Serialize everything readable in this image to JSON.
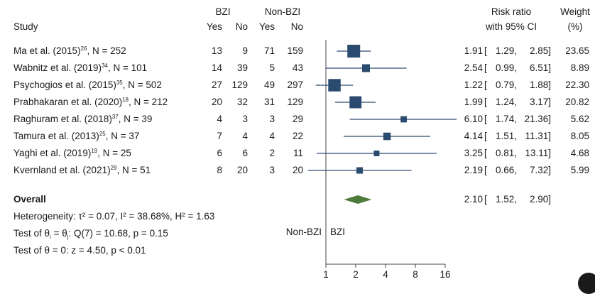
{
  "header": {
    "study": "Study",
    "group1": "BZI",
    "group2": "Non-BZI",
    "yes": "Yes",
    "no": "No",
    "rr_line1": "Risk ratio",
    "rr_line2": "with 95% CI",
    "weight_line1": "Weight",
    "weight_line2": "(%)"
  },
  "studies": [
    {
      "name": "Ma et al. (2015)",
      "ref": "26",
      "n": ", N = 252",
      "bzi_yes": "13",
      "bzi_no": "9",
      "non_yes": "71",
      "non_no": "159",
      "rr": "1.91",
      "lo": "1.29,",
      "hi": "2.85]",
      "weight": "23.65"
    },
    {
      "name": "Wabnitz et al. (2019)",
      "ref": "34",
      "n": ", N = 101",
      "bzi_yes": "14",
      "bzi_no": "39",
      "non_yes": "5",
      "non_no": "43",
      "rr": "2.54",
      "lo": "0.99,",
      "hi": "6.51]",
      "weight": "8.89"
    },
    {
      "name": "Psychogios et al. (2015)",
      "ref": "35",
      "n": ", N = 502",
      "bzi_yes": "27",
      "bzi_no": "129",
      "non_yes": "49",
      "non_no": "297",
      "rr": "1.22",
      "lo": "0.79,",
      "hi": "1.88]",
      "weight": "22.30"
    },
    {
      "name": "Prabhakaran et al. (2020)",
      "ref": "18",
      "n": ", N = 212",
      "bzi_yes": "20",
      "bzi_no": "32",
      "non_yes": "31",
      "non_no": "129",
      "rr": "1.99",
      "lo": "1.24,",
      "hi": "3.17]",
      "weight": "20.82"
    },
    {
      "name": "Raghuram et al. (2018)",
      "ref": "37",
      "n": ", N = 39",
      "bzi_yes": "4",
      "bzi_no": "3",
      "non_yes": "3",
      "non_no": "29",
      "rr": "6.10",
      "lo": "1.74,",
      "hi": "21.36]",
      "weight": "5.62"
    },
    {
      "name": "Tamura et al. (2013)",
      "ref": "25",
      "n": ", N = 37",
      "bzi_yes": "7",
      "bzi_no": "4",
      "non_yes": "4",
      "non_no": "22",
      "rr": "4.14",
      "lo": "1.51,",
      "hi": "11.31]",
      "weight": "8.05"
    },
    {
      "name": "Yaghi et al. (2019)",
      "ref": "19",
      "n": ", N = 25",
      "bzi_yes": "6",
      "bzi_no": "6",
      "non_yes": "2",
      "non_no": "11",
      "rr": "3.25",
      "lo": "0.81,",
      "hi": "13.11]",
      "weight": "4.68"
    },
    {
      "name": "Kvernland et al. (2021)",
      "ref": "29",
      "n": ", N = 51",
      "bzi_yes": "8",
      "bzi_no": "20",
      "non_yes": "3",
      "non_no": "20",
      "rr": "2.19",
      "lo": "0.66,",
      "hi": "7.32]",
      "weight": "5.99"
    }
  ],
  "overall": {
    "label": "Overall",
    "rr": "2.10",
    "lo": "1.52,",
    "hi": "2.90]"
  },
  "stats": {
    "heterogeneity": "Heterogeneity: τ² = 0.07, I² = 38.68%, H² = 1.63",
    "test_theta_i_prefix": "Test of θ",
    "test_theta_i_mid": " = θ",
    "test_theta_i_suffix": ": Q(7) = 10.68, p = 0.15",
    "test_theta_i_sub1": "i",
    "test_theta_i_sub2": "j",
    "test_theta0": "Test of θ = 0: z = 4.50, p < 0.01"
  },
  "favor": {
    "left": "Non-BZI",
    "right": "BZI"
  },
  "chart_data": {
    "type": "forest",
    "xscale": "log2",
    "xlim": [
      1,
      16
    ],
    "xticks": [
      1,
      2,
      4,
      8,
      16
    ],
    "xtick_labels": [
      "1",
      "2",
      "4",
      "8",
      "16"
    ],
    "reference_line": 1,
    "colors": {
      "study_marker": "#2b4a6f",
      "overall_diamond": "#4e7a3a"
    },
    "studies": [
      {
        "label": "Ma et al. (2015)",
        "rr": 1.91,
        "ci": [
          1.29,
          2.85
        ],
        "weight": 23.65
      },
      {
        "label": "Wabnitz et al. (2019)",
        "rr": 2.54,
        "ci": [
          0.99,
          6.51
        ],
        "weight": 8.89
      },
      {
        "label": "Psychogios et al. (2015)",
        "rr": 1.22,
        "ci": [
          0.79,
          1.88
        ],
        "weight": 22.3
      },
      {
        "label": "Prabhakaran et al. (2020)",
        "rr": 1.99,
        "ci": [
          1.24,
          3.17
        ],
        "weight": 20.82
      },
      {
        "label": "Raghuram et al. (2018)",
        "rr": 6.1,
        "ci": [
          1.74,
          21.36
        ],
        "weight": 5.62
      },
      {
        "label": "Tamura et al. (2013)",
        "rr": 4.14,
        "ci": [
          1.51,
          11.31
        ],
        "weight": 8.05
      },
      {
        "label": "Yaghi et al. (2019)",
        "rr": 3.25,
        "ci": [
          0.81,
          13.11
        ],
        "weight": 4.68
      },
      {
        "label": "Kvernland et al. (2021)",
        "rr": 2.19,
        "ci": [
          0.66,
          7.32
        ],
        "weight": 5.99
      }
    ],
    "overall": {
      "label": "Overall",
      "rr": 2.1,
      "ci": [
        1.52,
        2.9
      ]
    }
  }
}
